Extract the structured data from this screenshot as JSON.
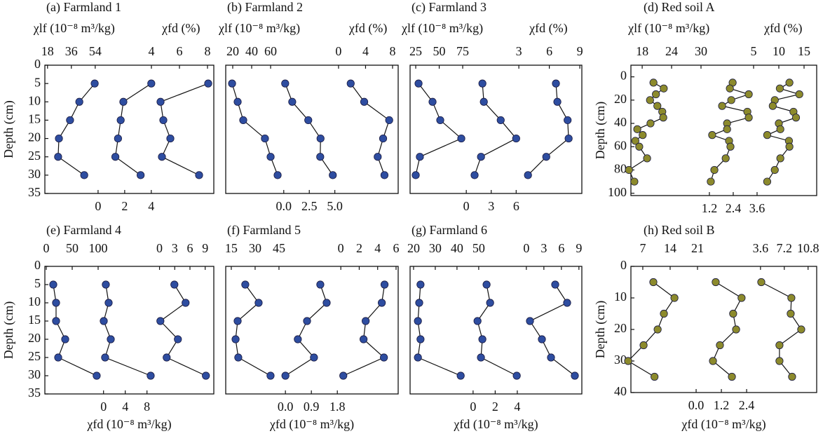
{
  "chart_data": [
    {
      "type": "depth-profile",
      "title": "(a) Farmland 1",
      "ylabel": "Depth (cm)",
      "ylim": [
        0,
        35
      ],
      "yticks": [
        0,
        5,
        10,
        15,
        20,
        25,
        30,
        35
      ],
      "y": [
        5,
        10,
        15,
        20,
        25,
        30
      ],
      "color": "#2e4da0",
      "series": [
        {
          "axis": "top",
          "xlabel": "χlf (10⁻⁸ m³/kg)",
          "xlim": [
            16,
            143.5
          ],
          "xticks": [
            18,
            36,
            54
          ],
          "values": [
            53.6,
            42,
            35,
            26.6,
            26,
            45.7
          ]
        },
        {
          "axis": "bottom",
          "xlim": [
            -4,
            8.7
          ],
          "xticks": [
            0,
            2,
            4
          ],
          "values": [
            4.0,
            1.9,
            1.7,
            1.5,
            1.3,
            3.2
          ]
        },
        {
          "axis": "top",
          "xlabel": "χfd (%)",
          "xlim": [
            -3.6,
            8.45
          ],
          "xticks": [
            4,
            6,
            8
          ],
          "values": [
            8.05,
            4.65,
            4.85,
            5.35,
            4.75,
            7.4
          ]
        }
      ]
    },
    {
      "type": "depth-profile",
      "title": "(b) Farmland 2",
      "ylim": [
        0,
        35
      ],
      "y": [
        5,
        10,
        15,
        20,
        25,
        30
      ],
      "color": "#2e4da0",
      "series": [
        {
          "axis": "top",
          "xlabel": "χlf (10⁻⁸ m³/kg)",
          "xlim": [
            12.6,
            194.7
          ],
          "xticks": [
            20,
            40,
            60
          ],
          "values": [
            19.3,
            25.2,
            31.1,
            54.0,
            60.0,
            67.4
          ]
        },
        {
          "axis": "bottom",
          "xlim": [
            -5.68,
            11.2
          ],
          "xticks": [
            {
              "value": 0,
              "label": "0.0"
            },
            2.5,
            {
              "value": 5,
              "label": "5.0"
            }
          ],
          "values": [
            0.14,
            0.83,
            2.4,
            3.6,
            3.57,
            4.8
          ]
        },
        {
          "axis": "top",
          "xlabel": "χfd (%)",
          "xlim": [
            -16.7,
            8.83
          ],
          "xticks": [
            0,
            4,
            8
          ],
          "values": [
            1.8,
            3.8,
            7.5,
            6.6,
            5.8,
            6.8
          ]
        }
      ]
    },
    {
      "type": "depth-profile",
      "title": "(c) Farmland 3",
      "ylim": [
        0,
        35
      ],
      "y": [
        5,
        10,
        15,
        20,
        25,
        30
      ],
      "color": "#2e4da0",
      "series": [
        {
          "axis": "top",
          "xlabel": "χlf (10⁻⁸ m³/kg)",
          "xlim": [
            19,
            201.8
          ],
          "xticks": [
            25,
            50,
            75
          ],
          "values": [
            28,
            42.9,
            51.1,
            73.5,
            29.4,
            25
          ]
        },
        {
          "axis": "bottom",
          "xlim": [
            -6.76,
            13.9
          ],
          "xticks": [
            0,
            3,
            6
          ],
          "values": [
            1.94,
            2.11,
            4.14,
            6.0,
            1.77,
            1.0
          ]
        },
        {
          "axis": "top",
          "xlabel": "χfd (%)",
          "xlim": [
            -7.7,
            9.2
          ],
          "xticks": [
            3,
            6,
            9
          ],
          "values": [
            6.65,
            6.79,
            7.8,
            7.9,
            5.7,
            3.9
          ]
        }
      ]
    },
    {
      "type": "depth-profile",
      "title": "(d) Red soil A",
      "ylabel": "Depth (cm)",
      "ylim": [
        -10,
        102
      ],
      "yticks": [
        0,
        20,
        40,
        60,
        80,
        100
      ],
      "y": [
        5,
        10,
        15,
        20,
        25,
        30,
        35,
        40,
        45,
        50,
        55,
        60,
        70,
        80,
        90
      ],
      "color": "#8c8a2c",
      "series": [
        {
          "axis": "top",
          "xlabel": "χlf (10⁻⁸ m³/kg)",
          "xlim": [
            15.7,
            53.6
          ],
          "xticks": [
            18,
            24,
            30
          ],
          "values": [
            20.3,
            22.4,
            20.8,
            19.6,
            21.1,
            22.1,
            22.3,
            19.7,
            17.0,
            18.1,
            16.6,
            17.4,
            19.0,
            15.3,
            16.4
          ]
        },
        {
          "axis": "bottom",
          "xlim": [
            -2.75,
            6.6
          ],
          "xticks": [
            1.2,
            2.4,
            3.6
          ],
          "values": [
            2.37,
            2.23,
            3.18,
            2.3,
            1.84,
            3.11,
            3.18,
            2.09,
            2.09,
            1.34,
            2.19,
            2.26,
            2.02,
            1.45,
            1.27
          ]
        },
        {
          "axis": "top",
          "xlabel": "χfd (%)",
          "xlim": [
            -19.3,
            17.5
          ],
          "xticks": [
            5,
            10,
            15
          ],
          "values": [
            12.1,
            10.2,
            14.06,
            9.2,
            8.8,
            12.9,
            13.4,
            10.0,
            10.3,
            7.7,
            12.0,
            12.1,
            10.3,
            9.2,
            7.7
          ]
        }
      ]
    },
    {
      "type": "depth-profile",
      "title": "(e) Farmland 4",
      "ylabel": "Depth (cm)",
      "ylim": [
        0,
        35
      ],
      "yticks": [
        0,
        5,
        10,
        15,
        20,
        25,
        30,
        35
      ],
      "y": [
        5,
        10,
        15,
        20,
        25,
        30
      ],
      "color": "#2e4da0",
      "series": [
        {
          "axis": "top",
          "xlim": [
            -2.7,
            323
          ],
          "xticks": [
            0,
            50,
            100
          ],
          "values": [
            13.5,
            18.9,
            18.9,
            36.5,
            23,
            97.2
          ]
        },
        {
          "axis": "bottom",
          "xlabel": "χfd (10⁻⁸ m³/kg)",
          "xlim": [
            -10.8,
            20.3
          ],
          "xticks": [
            0,
            4,
            8
          ],
          "values": [
            0.42,
            0.94,
            0.04,
            1.33,
            0.29,
            8.68
          ]
        },
        {
          "axis": "top",
          "xlim": [
            -22.6,
            10.7
          ],
          "xticks": [
            0,
            3,
            6,
            9
          ],
          "values": [
            2.93,
            5.14,
            0.17,
            3.62,
            1.41,
            9.14
          ]
        }
      ]
    },
    {
      "type": "depth-profile",
      "title": "(f) Farmland 5",
      "ylim": [
        0,
        35
      ],
      "y": [
        5,
        10,
        15,
        20,
        25,
        30
      ],
      "color": "#2e4da0",
      "series": [
        {
          "axis": "top",
          "xlim": [
            11.5,
            120
          ],
          "xticks": [
            15,
            30,
            45
          ],
          "values": [
            23.8,
            32.2,
            19,
            17.7,
            19.4,
            39.7
          ]
        },
        {
          "axis": "bottom",
          "xlabel": "χfd (10⁻⁸ m³/kg)",
          "xlim": [
            -2.07,
            3.91
          ],
          "xticks": [
            {
              "value": 0,
              "label": "0.0"
            },
            0.9,
            1.8
          ],
          "values": [
            1.21,
            1.43,
            0.75,
            0.43,
            0.99,
            0.0
          ]
        },
        {
          "axis": "top",
          "xlim": [
            -12.5,
            6.23
          ],
          "xticks": [
            0,
            2,
            4,
            6
          ],
          "values": [
            4.75,
            4.45,
            2.7,
            2.47,
            4.68,
            0.27
          ]
        }
      ]
    },
    {
      "type": "depth-profile",
      "title": "(g) Farmland 6",
      "ylim": [
        0,
        35
      ],
      "y": [
        5,
        10,
        15,
        20,
        25,
        30
      ],
      "color": "#2e4da0",
      "series": [
        {
          "axis": "top",
          "xlim": [
            18.4,
            97.5
          ],
          "xticks": [
            20,
            30,
            40,
            50
          ],
          "values": [
            23.2,
            22.6,
            22,
            23.2,
            22,
            41.7
          ]
        },
        {
          "axis": "bottom",
          "xlabel": "χfd (10⁻⁸ m³/kg)",
          "xlim": [
            -5.7,
            9.84
          ],
          "xticks": [
            0,
            2,
            4
          ],
          "values": [
            1.22,
            1.54,
            0.4,
            0.84,
            0.71,
            3.95
          ]
        },
        {
          "axis": "top",
          "xlim": [
            -19.9,
            9.5
          ],
          "xticks": [
            0,
            3,
            6,
            9
          ],
          "values": [
            4.94,
            6.98,
            0.62,
            2.66,
            4.22,
            8.3
          ]
        }
      ]
    },
    {
      "type": "depth-profile",
      "title": "(h) Red soil B",
      "ylabel": "Depth (cm)",
      "ylim": [
        0,
        40
      ],
      "yticks": [
        0,
        10,
        20,
        30,
        40
      ],
      "y": [
        5,
        10,
        15,
        20,
        25,
        30,
        35
      ],
      "color": "#8c8a2c",
      "series": [
        {
          "axis": "top",
          "xlim": [
            3.96,
            51.5
          ],
          "xticks": [
            7,
            14,
            21
          ],
          "values": [
            9.7,
            15.1,
            12.4,
            10.8,
            7.2,
            3.25,
            10.0
          ]
        },
        {
          "axis": "bottom",
          "xlabel": "χfd (10⁻⁸ m³/kg)",
          "xlim": [
            -3.1,
            5.73
          ],
          "xticks": [
            {
              "value": 0,
              "label": "0.0"
            },
            1.2,
            2.4
          ],
          "values": [
            0.93,
            2.16,
            1.76,
            1.9,
            1.13,
            0.8,
            1.7
          ]
        },
        {
          "axis": "top",
          "xlim": [
            -16,
            12.1
          ],
          "xticks": [
            3.6,
            7.2,
            10.8
          ],
          "values": [
            3.72,
            8.27,
            8.17,
            9.76,
            6.47,
            6.47,
            8.38
          ]
        }
      ]
    }
  ]
}
